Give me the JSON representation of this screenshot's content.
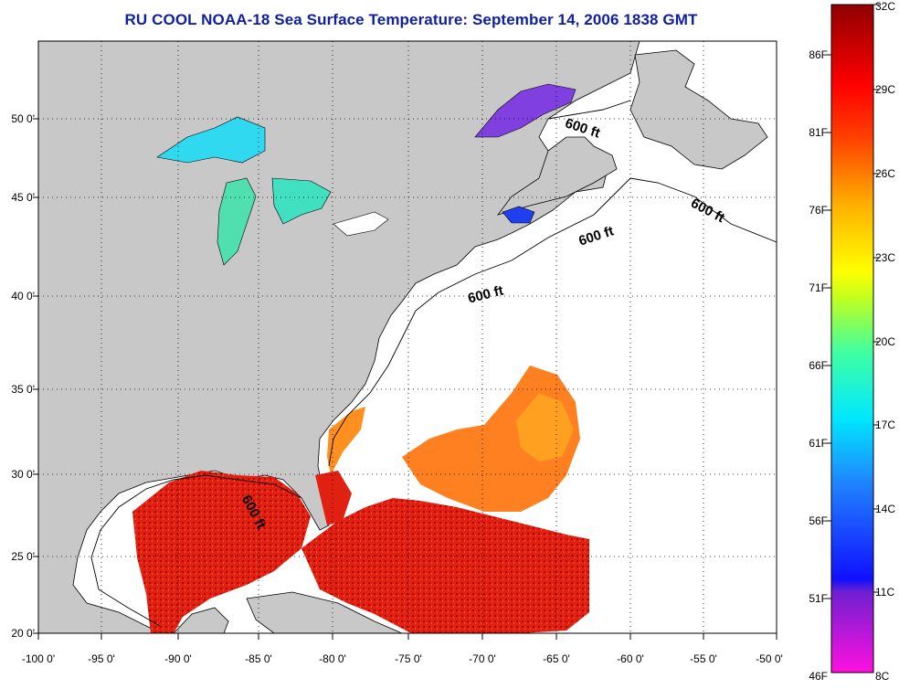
{
  "title": "RU COOL  NOAA-18  Sea Surface Temperature:  September 14, 2006 1838 GMT",
  "x_ticks": [
    "-100 0'",
    "-95 0'",
    "-90 0'",
    "-85 0'",
    "-80 0'",
    "-75 0'",
    "-70 0'",
    "-65 0'",
    "-60 0'",
    "-55 0'",
    "-50 0'"
  ],
  "y_ticks": [
    "50 0'",
    "45 0'",
    "40 0'",
    "35 0'",
    "30 0'",
    "25 0'",
    "20 0'"
  ],
  "colorbar": {
    "fahrenheit_labels": [
      "86F",
      "81F",
      "76F",
      "71F",
      "66F",
      "61F",
      "56F",
      "51F",
      "46F"
    ],
    "celsius_labels": [
      "32C",
      "29C",
      "26C",
      "23C",
      "20C",
      "17C",
      "14C",
      "11C",
      "8C"
    ]
  },
  "isobath_labels": [
    "600 ft",
    "600 ft",
    "600 ft",
    "600 ft",
    "600 ft"
  ],
  "colors": {
    "land": "#c8c8c8",
    "ocean_no_data": "#ffffff",
    "title": "#1020a0"
  }
}
